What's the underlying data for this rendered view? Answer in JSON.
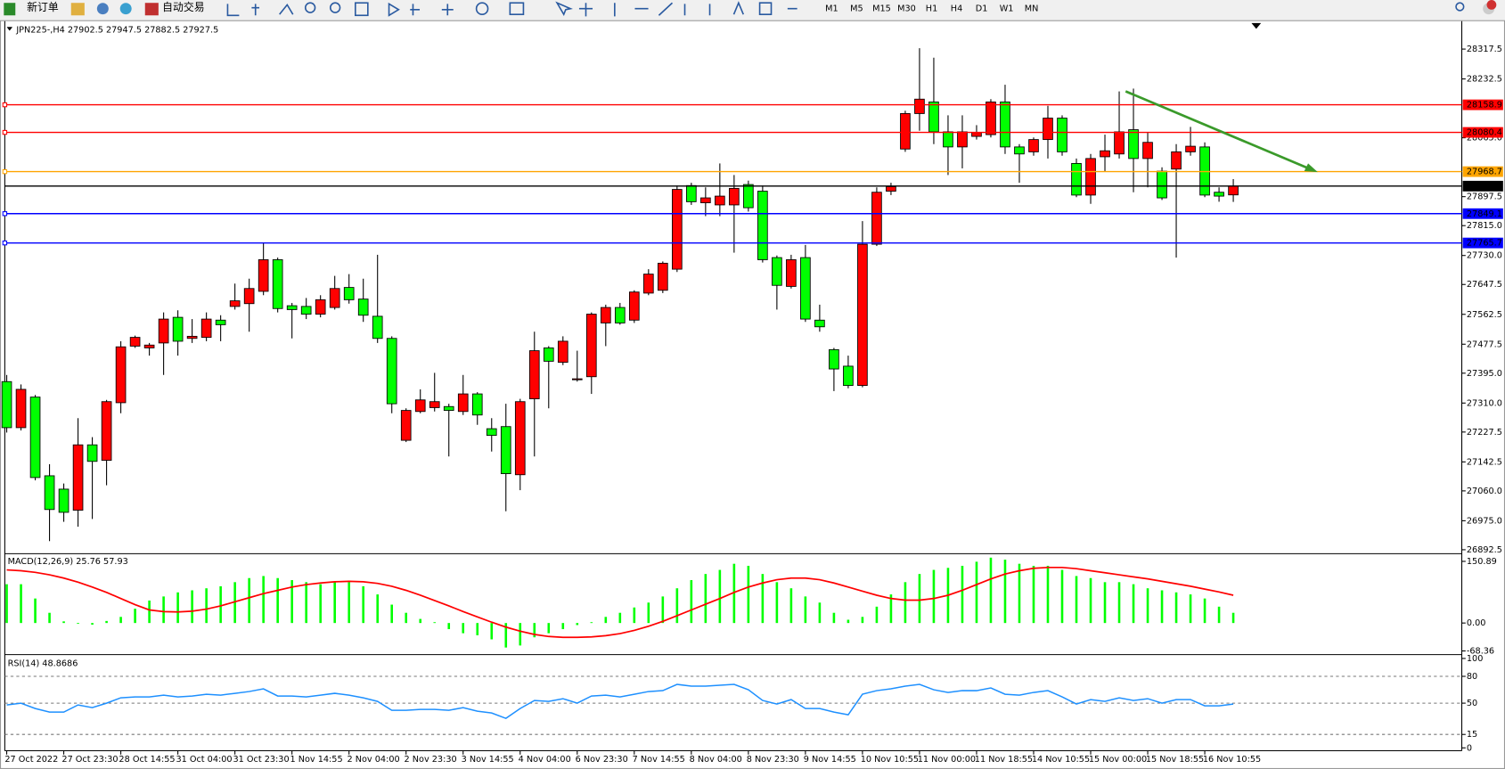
{
  "toolbar": {
    "new_order": "新订单",
    "auto_trading": "自动交易",
    "timeframes": [
      "M1",
      "M5",
      "M15",
      "M30",
      "H1",
      "H4",
      "D1",
      "W1",
      "MN"
    ]
  },
  "chart_data": {
    "type": "candlestick",
    "title": "JPN225-,H4  27902.5 27947.5 27882.5 27927.5",
    "up_color": "#ff0000",
    "down_color": "#00ff00",
    "categories": [
      "27 Oct 2022",
      null,
      null,
      null,
      "27 Oct 23:30",
      null,
      null,
      null,
      "28 Oct 14:55",
      null,
      null,
      null,
      "31 Oct 04:00",
      null,
      null,
      null,
      "31 Oct 23:30",
      null,
      null,
      null,
      "1 Nov 14:55",
      null,
      null,
      null,
      "2 Nov 04:00",
      null,
      null,
      null,
      "2 Nov 23:30",
      null,
      null,
      null,
      "3 Nov 14:55",
      null,
      null,
      null,
      "4 Nov 04:00",
      null,
      null,
      null,
      "6 Nov 23:30",
      null,
      null,
      null,
      "7 Nov 14:55",
      null,
      null,
      null,
      "8 Nov 04:00",
      null,
      null,
      null,
      "8 Nov 23:30",
      null,
      null,
      null,
      "9 Nov 14:55",
      null,
      null,
      null,
      "10 Nov 10:55",
      null,
      null,
      null,
      "11 Nov 00:00",
      null,
      null,
      null,
      "11 Nov 18:55",
      null,
      null,
      null,
      "14 Nov 10:55",
      null,
      null,
      null,
      "15 Nov 00:00",
      null,
      null,
      null,
      "15 Nov 18:55",
      null,
      null,
      null,
      "16 Nov 10:55",
      null,
      null
    ],
    "open": [
      27371,
      27240,
      27327,
      27103,
      27065,
      27005,
      27191,
      27147,
      27311,
      27472,
      27467,
      27481,
      27554,
      27494,
      27497,
      27546,
      27585,
      27593,
      27628,
      27718,
      27587,
      27585,
      27563,
      27582,
      27639,
      27606,
      27557,
      27494,
      27204,
      27286,
      27297,
      27300,
      27286,
      27336,
      27237,
      27243,
      27106,
      27322,
      27467,
      27426,
      27377,
      27385,
      27538,
      27582,
      27546,
      27623,
      27631,
      27691,
      27929,
      27880,
      27874,
      27874,
      27932,
      27913,
      27724,
      27642,
      27724,
      27546,
      27462,
      27415,
      27360,
      27762,
      27913,
      28033,
      28134,
      28167,
      28082,
      28039,
      28069,
      28074,
      28167,
      28039,
      28025,
      28060,
      28121,
      27992,
      27902,
      28011,
      28019,
      28088,
      28006,
      27970,
      27976,
      28025,
      28039,
      27910,
      27902.5
    ],
    "high": [
      27390,
      27363,
      27333,
      27136,
      27081,
      27267,
      27213,
      27319,
      27486,
      27502,
      27481,
      27568,
      27574,
      27549,
      27568,
      27560,
      27650,
      27664,
      27765,
      27724,
      27595,
      27609,
      27617,
      27672,
      27677,
      27664,
      27732,
      27500,
      27295,
      27349,
      27396,
      27308,
      27390,
      27341,
      27267,
      27308,
      27322,
      27513,
      27472,
      27500,
      27459,
      27568,
      27590,
      27595,
      27631,
      27691,
      27713,
      27929,
      27937,
      27924,
      27992,
      27959,
      27943,
      27929,
      27730,
      27732,
      27760,
      27590,
      27467,
      27445,
      27828,
      27924,
      27937,
      28142,
      28320,
      28293,
      28129,
      28129,
      28101,
      28175,
      28216,
      28047,
      28066,
      28156,
      28129,
      28006,
      28019,
      28074,
      28197,
      28205,
      28080,
      27981,
      28047,
      28096,
      28052,
      27924,
      27947.5
    ],
    "low": [
      27226,
      27232,
      27090,
      26917,
      26972,
      26958,
      26980,
      27076,
      27281,
      27467,
      27445,
      27390,
      27445,
      27481,
      27486,
      27486,
      27576,
      27513,
      27617,
      27568,
      27494,
      27549,
      27554,
      27576,
      27593,
      27541,
      27481,
      27281,
      27199,
      27281,
      27286,
      27158,
      27276,
      27248,
      27172,
      27002,
      27062,
      27158,
      27295,
      27418,
      27371,
      27336,
      27472,
      27533,
      27538,
      27617,
      27623,
      27683,
      27874,
      27842,
      27842,
      27738,
      27855,
      27710,
      27576,
      27636,
      27541,
      27513,
      27344,
      27352,
      27355,
      27757,
      27902,
      28025,
      28085,
      28047,
      27959,
      27978,
      28060,
      28066,
      28019,
      27937,
      28014,
      28006,
      28014,
      27896,
      27877,
      27970,
      28006,
      27910,
      27924,
      27888,
      27724,
      28014,
      27896,
      27883,
      27882.5
    ],
    "close": [
      27240,
      27349,
      27098,
      27007,
      26999,
      27191,
      27144,
      27314,
      27470,
      27497,
      27475,
      27549,
      27486,
      27500,
      27549,
      27533,
      27601,
      27636,
      27718,
      27579,
      27576,
      27563,
      27604,
      27636,
      27604,
      27560,
      27494,
      27308,
      27289,
      27319,
      27314,
      27289,
      27336,
      27276,
      27218,
      27109,
      27314,
      27459,
      27429,
      27486,
      27379,
      27563,
      27582,
      27538,
      27626,
      27677,
      27708,
      27918,
      27883,
      27894,
      27899,
      27921,
      27866,
      27718,
      27645,
      27718,
      27549,
      27527,
      27407,
      27360,
      27762,
      27910,
      27926,
      28134,
      28175,
      28082,
      28039,
      28082,
      28080,
      28167,
      28039,
      28019,
      28060,
      28121,
      28025,
      27902,
      28006,
      28028,
      28082,
      28006,
      28052,
      27894,
      28025,
      28041,
      27902,
      27899,
      27927.5
    ],
    "ylim": [
      26884,
      28397
    ],
    "yticks": [
      28317.5,
      28232.5,
      {
        "value": 28065,
        "label": "28065.0"
      },
      27897.5,
      {
        "value": 27815,
        "label": "27815.0"
      },
      {
        "value": 27730,
        "label": "27730.0"
      },
      27647.5,
      27562.5,
      27477.5,
      {
        "value": 27395,
        "label": "27395.0"
      },
      {
        "value": 27310,
        "label": "27310.0"
      },
      27227.5,
      27142.5,
      {
        "value": 27060,
        "label": "27060.0"
      },
      {
        "value": 26975,
        "label": "26975.0"
      },
      26892.5
    ],
    "levels": [
      {
        "value": 28158.9,
        "color": "#ff0000"
      },
      {
        "value": 28080.4,
        "color": "#ff0000"
      },
      {
        "value": 27968.7,
        "color": "#ffa500"
      },
      {
        "value": 27927.5,
        "color": "#000000"
      },
      {
        "value": 27849.1,
        "color": "#0000ff"
      },
      {
        "value": 27765.7,
        "color": "#0000ff"
      }
    ],
    "indicators": [
      {
        "type": "macd",
        "name": "MACD(12,26,9) 25.76 57.93",
        "histogram_color": "#00ff00",
        "signal_color": "#ff0000",
        "histogram": [
          95,
          95,
          60,
          25,
          4,
          -2,
          -4,
          5,
          15,
          35,
          55,
          65,
          75,
          80,
          85,
          90,
          100,
          110,
          115,
          110,
          105,
          100,
          95,
          100,
          100,
          90,
          70,
          45,
          25,
          10,
          2,
          -15,
          -25,
          -30,
          -40,
          -60,
          -55,
          -35,
          -25,
          -15,
          -5,
          2,
          15,
          25,
          38,
          50,
          65,
          85,
          105,
          120,
          130,
          145,
          140,
          120,
          100,
          85,
          65,
          50,
          25,
          8,
          15,
          40,
          70,
          100,
          120,
          130,
          135,
          140,
          150,
          160,
          155,
          145,
          140,
          140,
          130,
          115,
          110,
          100,
          100,
          95,
          85,
          80,
          75,
          70,
          60,
          40,
          25
        ],
        "signal": [
          130,
          128,
          124,
          118,
          110,
          100,
          88,
          75,
          60,
          45,
          32,
          28,
          27,
          29,
          34,
          42,
          52,
          62,
          72,
          80,
          88,
          94,
          98,
          101,
          102,
          101,
          97,
          90,
          80,
          68,
          55,
          42,
          28,
          15,
          2,
          -10,
          -20,
          -28,
          -33,
          -35,
          -35,
          -34,
          -31,
          -26,
          -18,
          -8,
          4,
          18,
          32,
          46,
          60,
          75,
          88,
          98,
          106,
          110,
          110,
          106,
          98,
          88,
          78,
          68,
          60,
          56,
          56,
          60,
          68,
          80,
          94,
          108,
          120,
          128,
          134,
          136,
          136,
          133,
          128,
          123,
          118,
          113,
          108,
          102,
          96,
          90,
          83,
          76,
          68
        ],
        "ylim": [
          -75,
          165
        ],
        "yticks": [
          150.89,
          {
            "value": 0,
            "label": "0.00"
          },
          -68.36
        ]
      },
      {
        "type": "rsi",
        "name": "RSI(14) 48.8686",
        "color": "#1e90ff",
        "values": [
          48,
          50,
          44,
          40,
          40,
          48,
          45,
          50,
          56,
          57,
          57,
          59,
          57,
          58,
          60,
          59,
          61,
          63,
          66,
          58,
          58,
          57,
          59,
          61,
          59,
          56,
          52,
          42,
          42,
          43,
          43,
          42,
          45,
          41,
          39,
          33,
          44,
          53,
          52,
          55,
          50,
          58,
          59,
          57,
          60,
          63,
          64,
          71,
          69,
          69,
          70,
          71,
          65,
          53,
          49,
          54,
          44,
          44,
          40,
          37,
          60,
          64,
          66,
          69,
          71,
          65,
          62,
          64,
          64,
          67,
          60,
          59,
          62,
          64,
          57,
          49,
          54,
          52,
          56,
          53,
          55,
          50,
          54,
          54,
          47,
          47,
          49
        ],
        "ylim": [
          0,
          100
        ],
        "yticks": [
          100,
          80,
          50,
          15,
          0
        ]
      }
    ]
  }
}
